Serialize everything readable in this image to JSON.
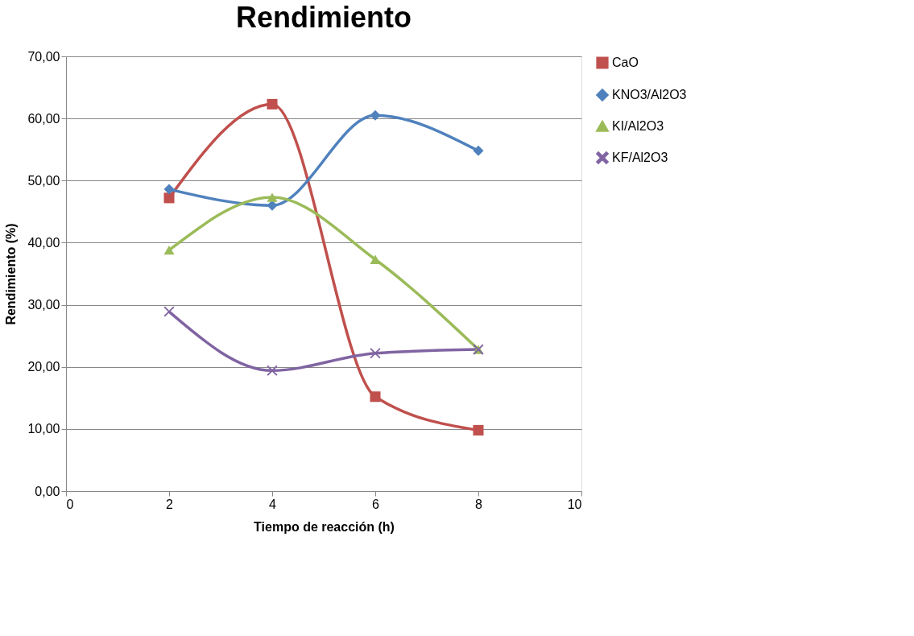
{
  "chart_data": {
    "type": "line",
    "title": "Rendimiento",
    "xlabel": "Tiempo de reacción (h)",
    "ylabel": "Rendimiento (%)",
    "x": [
      2,
      4,
      6,
      8
    ],
    "series": [
      {
        "name": "CaO",
        "color": "#c0504d",
        "marker": "square",
        "values": [
          47.2,
          62.3,
          15.2,
          9.8
        ]
      },
      {
        "name": "KNO3/Al2O3",
        "color": "#4f81bd",
        "marker": "diamond",
        "values": [
          48.6,
          46.0,
          60.5,
          54.8
        ]
      },
      {
        "name": "KI/Al2O3",
        "color": "#9bbb59",
        "marker": "triangle",
        "values": [
          38.8,
          47.3,
          37.3,
          22.8
        ]
      },
      {
        "name": "KF/Al2O3",
        "color": "#8064a2",
        "marker": "cross",
        "values": [
          28.9,
          19.4,
          22.2,
          22.8
        ]
      }
    ],
    "xlim": [
      0,
      10
    ],
    "xticks": [
      0,
      2,
      4,
      6,
      8,
      10
    ],
    "ylim": [
      0,
      70
    ],
    "yticks": [
      {
        "value": 0,
        "label": "0,00"
      },
      {
        "value": 10,
        "label": "10,00"
      },
      {
        "value": 20,
        "label": "20,00"
      },
      {
        "value": 30,
        "label": "30,00"
      },
      {
        "value": 40,
        "label": "40,00"
      },
      {
        "value": 50,
        "label": "50,00"
      },
      {
        "value": 60,
        "label": "60,00"
      },
      {
        "value": 70,
        "label": "70,00"
      }
    ],
    "grid": "y",
    "legend": "right",
    "line_style": "solid"
  }
}
